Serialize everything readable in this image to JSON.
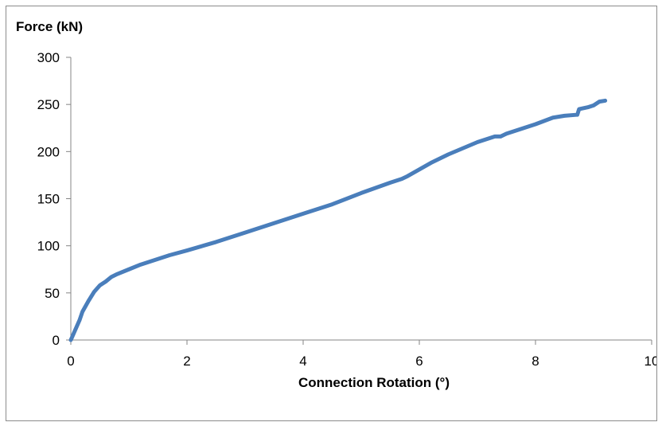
{
  "colors": {
    "series": "#4a7ebb",
    "axis": "#868686",
    "frame": "#8c8c8c",
    "text": "#000000"
  },
  "chart_data": {
    "type": "line",
    "title": "",
    "xlabel": "Connection Rotation (°)",
    "ylabel": "Force (kN)",
    "xlim": [
      0,
      10
    ],
    "ylim": [
      0,
      300
    ],
    "grid": false,
    "legend": false,
    "x_ticks": [
      0,
      2,
      4,
      6,
      8,
      10
    ],
    "y_ticks": [
      0,
      50,
      100,
      150,
      200,
      250,
      300
    ],
    "series": [
      {
        "color": "#4a7ebb",
        "x": [
          0,
          0.05,
          0.1,
          0.15,
          0.2,
          0.3,
          0.4,
          0.5,
          0.6,
          0.7,
          0.8,
          1.0,
          1.2,
          1.5,
          1.7,
          2.0,
          2.5,
          3.0,
          3.5,
          4.0,
          4.5,
          5.0,
          5.5,
          5.7,
          5.8,
          6.0,
          6.2,
          6.5,
          7.0,
          7.3,
          7.4,
          7.5,
          8.0,
          8.3,
          8.5,
          8.7,
          8.72,
          8.75,
          8.9,
          9.0,
          9.1,
          9.2
        ],
        "y": [
          0,
          7,
          14,
          21,
          30,
          41,
          51,
          58,
          62,
          67,
          70,
          75,
          80,
          86,
          90,
          95,
          104,
          114,
          124,
          134,
          144,
          156,
          167,
          171,
          174,
          181,
          188,
          197,
          210,
          216,
          216,
          219,
          229,
          236,
          238,
          239,
          239,
          245,
          247,
          249,
          253,
          254
        ]
      }
    ]
  }
}
